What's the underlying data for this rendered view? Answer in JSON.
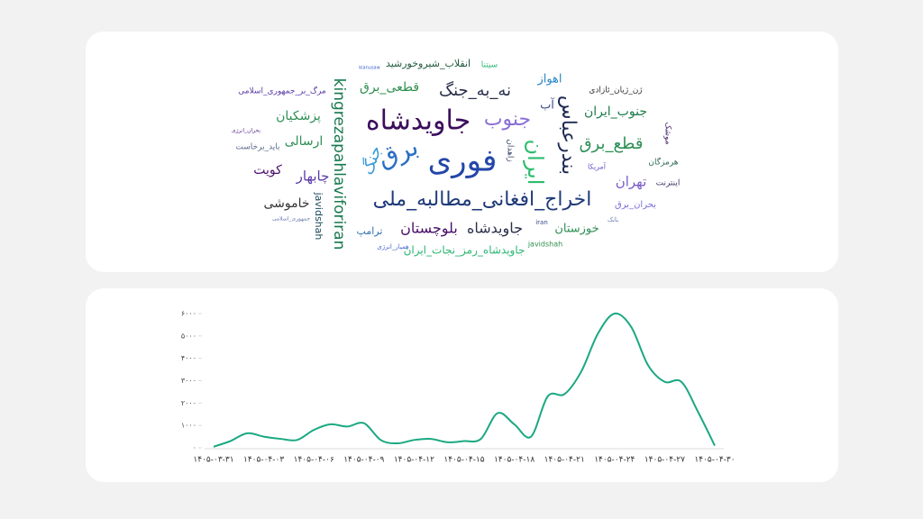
{
  "word_cloud": {
    "words": [
      "انقلاب_شیروخورشید",
      "سیتنا",
      "kianusaw",
      "kingrezapahlaviforiran",
      "جاویدشاه",
      "فوری",
      "نه_به_جنگ",
      "قطعی_برق",
      "جنوب",
      "اخراج_افغانی_مطالبه_ملی",
      "برق",
      "جنگ",
      "ایران",
      "بندرعباس",
      "اهواز",
      "آب",
      "ژن_ژیان_ئازادی",
      "جنوب_ایران",
      "قطع_برق",
      "تهران",
      "هرمزگان",
      "آمریکا",
      "اینترنت",
      "بحران_برق",
      "موشک",
      "بانک",
      "خوزستان",
      "جاویدشاه",
      "بلوچستان",
      "ترامپ",
      "جاویدشاه_رمز_نجات_ایران",
      "javidshah",
      "iran",
      "همیار_انرژی",
      "javidshah",
      "خاموشی",
      "چابهار",
      "کویت",
      "ارسالی",
      "پزشکیان",
      "مرگ_بر_جمهوری_اسلامی",
      "باید_برخاست",
      "بحران_انرژی",
      "زاهدان",
      "جمهوری_اسلامی"
    ]
  },
  "chart_data": {
    "type": "line",
    "categories": [
      "۱۴۰۵-۰۳-۳۱",
      null,
      null,
      "۱۴۰۵-۰۴-۰۳",
      null,
      null,
      "۱۴۰۵-۰۴-۰۶",
      null,
      null,
      "۱۴۰۵-۰۴-۰۹",
      null,
      null,
      "۱۴۰۵-۰۴-۱۲",
      null,
      null,
      "۱۴۰۵-۰۴-۱۵",
      null,
      null,
      "۱۴۰۵-۰۴-۱۸",
      null,
      null,
      "۱۴۰۵-۰۴-۲۱",
      null,
      null,
      "۱۴۰۵-۰۴-۲۴",
      null,
      null,
      "۱۴۰۵-۰۴-۲۷",
      null,
      null,
      "۱۴۰۵-۰۴-۳۰"
    ],
    "values": [
      50,
      300,
      650,
      500,
      400,
      350,
      800,
      1050,
      950,
      1100,
      350,
      200,
      350,
      400,
      250,
      300,
      400,
      1550,
      1050,
      500,
      2300,
      2400,
      3400,
      5100,
      6000,
      5400,
      3700,
      2950,
      2950,
      1600,
      100
    ],
    "color": "#1aa882",
    "ylim": [
      0,
      6000
    ],
    "yticks": [
      {
        "value": 0,
        "label": "۰"
      },
      {
        "value": 1000,
        "label": "۱۰۰۰"
      },
      {
        "value": 2000,
        "label": "۲۰۰۰"
      },
      {
        "value": 3000,
        "label": "۳۰۰۰"
      },
      {
        "value": 4000,
        "label": "۴۰۰۰"
      },
      {
        "value": 5000,
        "label": "۵۰۰۰"
      },
      {
        "value": 6000,
        "label": "۶۰۰۰"
      }
    ]
  }
}
